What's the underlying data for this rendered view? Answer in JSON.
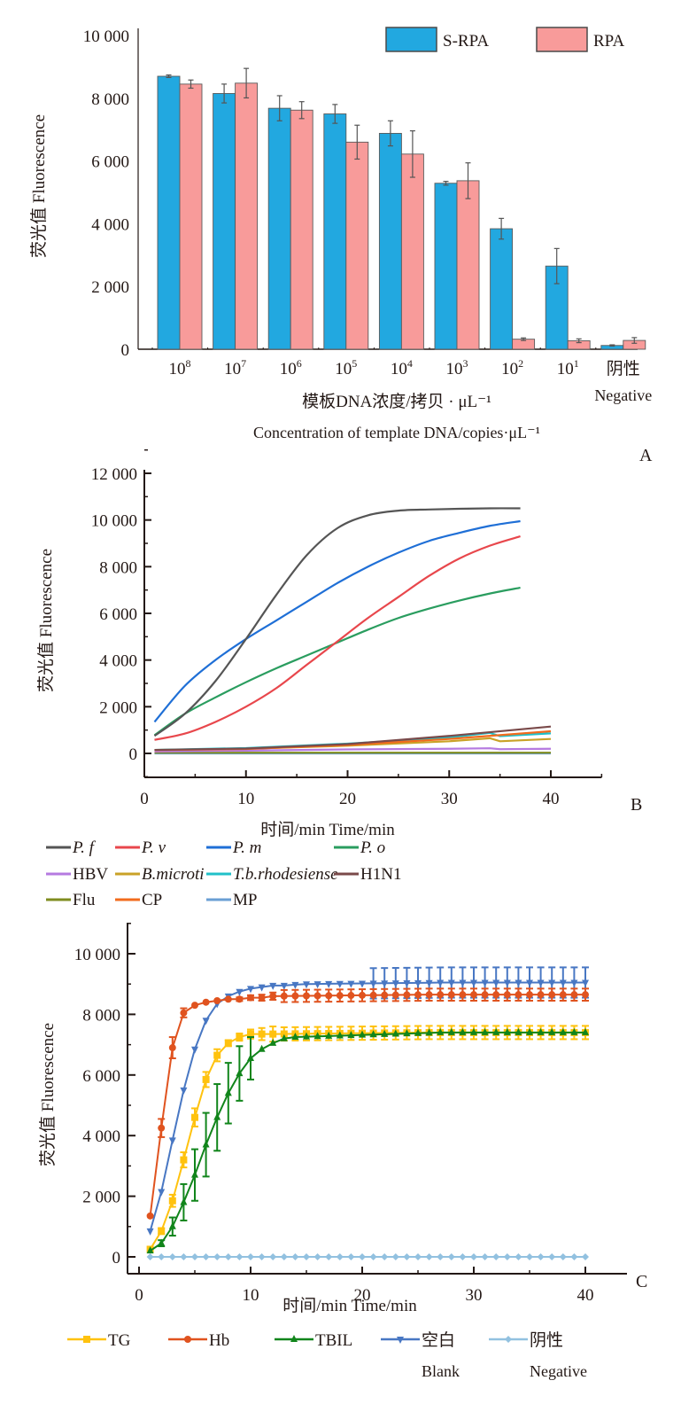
{
  "chart_data": [
    {
      "id": "A",
      "type": "bar",
      "panel_label": "A",
      "ylabel": "荧光值 Fluorescence",
      "xlabel_cn": "模板DNA浓度/拷贝 · μL⁻¹",
      "xlabel_en": "Concentration of template DNA/copies·μL⁻¹",
      "ylim": [
        0,
        10000
      ],
      "yticks": [
        0,
        2000,
        4000,
        6000,
        8000,
        10000
      ],
      "ytick_labels": [
        "0",
        "2 000",
        "4 000",
        "6 000",
        "8 000",
        "10 000"
      ],
      "categories": [
        {
          "base": "10",
          "exp": "8"
        },
        {
          "base": "10",
          "exp": "7"
        },
        {
          "base": "10",
          "exp": "6"
        },
        {
          "base": "10",
          "exp": "5"
        },
        {
          "base": "10",
          "exp": "4"
        },
        {
          "base": "10",
          "exp": "3"
        },
        {
          "base": "10",
          "exp": "2"
        },
        {
          "base": "10",
          "exp": "1"
        },
        {
          "base": "阴性",
          "exp": "",
          "sub": "Negative"
        }
      ],
      "legend_position": "top-right",
      "series": [
        {
          "name": "S-RPA",
          "color": "#22a8e0",
          "values": [
            8700,
            8150,
            7680,
            7500,
            6880,
            5290,
            3840,
            2650,
            120
          ],
          "errors": [
            40,
            300,
            400,
            300,
            400,
            60,
            330,
            560,
            20
          ]
        },
        {
          "name": "RPA",
          "color": "#f89b9a",
          "values": [
            8450,
            8480,
            7620,
            6600,
            6220,
            5370,
            320,
            270,
            280
          ],
          "errors": [
            130,
            470,
            270,
            540,
            740,
            570,
            40,
            60,
            90
          ]
        }
      ]
    },
    {
      "id": "B",
      "type": "line",
      "panel_label": "B",
      "ylabel": "荧光值 Fluorescence",
      "xlabel": "时间/min  Time/min",
      "xlim": [
        0,
        45
      ],
      "ylim": [
        -1000,
        12000
      ],
      "xticks": [
        0,
        10,
        20,
        30,
        40
      ],
      "xtick_labels": [
        "0",
        "10",
        "20",
        "30",
        "40"
      ],
      "yticks": [
        0,
        2000,
        4000,
        6000,
        8000,
        10000,
        12000
      ],
      "ytick_labels": [
        "0",
        "2 000",
        "4 000",
        "6 000",
        "8 000",
        "10 000",
        "12 000"
      ],
      "legend_position": "bottom",
      "series": [
        {
          "name": "P. f",
          "italic": true,
          "color": "#555555",
          "x": [
            1,
            4,
            7,
            10,
            13,
            16,
            19,
            22,
            25,
            28,
            31,
            34,
            37
          ],
          "y": [
            750,
            1700,
            3100,
            4900,
            6800,
            8500,
            9650,
            10200,
            10400,
            10450,
            10480,
            10500,
            10500
          ]
        },
        {
          "name": "P. v",
          "italic": true,
          "color": "#e8474c",
          "x": [
            1,
            4,
            7,
            10,
            13,
            16,
            19,
            22,
            25,
            28,
            31,
            34,
            37
          ],
          "y": [
            580,
            850,
            1350,
            2000,
            2800,
            3800,
            4800,
            5800,
            6700,
            7600,
            8350,
            8900,
            9300
          ]
        },
        {
          "name": "P. m",
          "italic": true,
          "color": "#1f6fd6",
          "x": [
            1,
            4,
            7,
            10,
            13,
            16,
            19,
            22,
            25,
            28,
            31,
            34,
            37
          ],
          "y": [
            1350,
            2900,
            4000,
            4900,
            5700,
            6500,
            7300,
            8000,
            8600,
            9100,
            9450,
            9750,
            9950
          ]
        },
        {
          "name": "P. o",
          "italic": true,
          "color": "#2a9d5f",
          "x": [
            1,
            4,
            7,
            10,
            13,
            16,
            19,
            22,
            25,
            28,
            31,
            34,
            37
          ],
          "y": [
            780,
            1700,
            2400,
            3050,
            3650,
            4200,
            4750,
            5300,
            5800,
            6200,
            6550,
            6850,
            7100
          ]
        },
        {
          "name": "HBV",
          "italic": false,
          "color": "#b57ae0",
          "x": [
            1,
            10,
            20,
            30,
            34,
            35,
            40
          ],
          "y": [
            80,
            120,
            170,
            200,
            220,
            180,
            200
          ]
        },
        {
          "name": "B.microti",
          "italic": true,
          "color": "#c9a227",
          "x": [
            1,
            10,
            20,
            30,
            34,
            35,
            40
          ],
          "y": [
            150,
            200,
            330,
            520,
            650,
            520,
            620
          ]
        },
        {
          "name": "T.b.rhodesiense",
          "italic": true,
          "color": "#20c0c8",
          "x": [
            1,
            10,
            20,
            30,
            34,
            35,
            40
          ],
          "y": [
            150,
            230,
            420,
            680,
            880,
            740,
            860
          ]
        },
        {
          "name": "H1N1",
          "italic": false,
          "color": "#7a4a4a",
          "x": [
            1,
            10,
            20,
            30,
            40
          ],
          "y": [
            150,
            210,
            400,
            750,
            1150
          ]
        },
        {
          "name": "Flu",
          "italic": false,
          "color": "#7f8c1f",
          "x": [
            1,
            10,
            20,
            30,
            40
          ],
          "y": [
            30,
            30,
            30,
            30,
            30
          ]
        },
        {
          "name": "CP",
          "italic": false,
          "color": "#f26b1d",
          "x": [
            1,
            10,
            20,
            30,
            40
          ],
          "y": [
            140,
            190,
            360,
            620,
            950
          ]
        },
        {
          "name": "MP",
          "italic": false,
          "color": "#6a9fd4",
          "x": [
            1,
            10,
            20,
            30,
            40
          ],
          "y": [
            0,
            0,
            0,
            0,
            0
          ]
        }
      ]
    },
    {
      "id": "C",
      "type": "line",
      "panel_label": "C",
      "ylabel": "荧光值 Fluorescence",
      "xlabel": "时间/min  Time/min",
      "xlim": [
        -1,
        42
      ],
      "ylim": [
        -500,
        11000
      ],
      "xticks": [
        0,
        10,
        20,
        30,
        40
      ],
      "xtick_labels": [
        "0",
        "10",
        "20",
        "30",
        "40"
      ],
      "yticks": [
        0,
        2000,
        4000,
        6000,
        8000,
        10000
      ],
      "ytick_labels": [
        "0",
        "2 000",
        "4 000",
        "6 000",
        "8 000",
        "10 000"
      ],
      "legend_position": "bottom",
      "series": [
        {
          "name": "TG",
          "sub": "",
          "color": "#ffc20e",
          "marker": "square",
          "x": [
            1,
            2,
            3,
            4,
            5,
            6,
            7,
            8,
            9,
            10,
            11,
            12
          ],
          "y": [
            250,
            850,
            1850,
            3200,
            4600,
            5850,
            6650,
            7050,
            7250,
            7350,
            7350,
            7350
          ],
          "tail": 7400,
          "err_early": [
            0,
            100,
            200,
            250,
            300,
            250,
            200,
            100,
            120,
            150,
            200,
            250
          ],
          "err_tail": 220
        },
        {
          "name": "Hb",
          "sub": "",
          "color": "#e0531f",
          "marker": "circle",
          "x": [
            1,
            2,
            3,
            4,
            5,
            6,
            7,
            8,
            9,
            10,
            11,
            12
          ],
          "y": [
            1350,
            4250,
            6900,
            8050,
            8300,
            8400,
            8450,
            8500,
            8500,
            8550,
            8550,
            8600
          ],
          "tail": 8650,
          "err_early": [
            0,
            300,
            350,
            150,
            0,
            0,
            0,
            0,
            60,
            80,
            100,
            120
          ],
          "err_tail": 200
        },
        {
          "name": "TBIL",
          "sub": "",
          "color": "#11851b",
          "marker": "triangle-up",
          "x": [
            1,
            2,
            3,
            4,
            5,
            6,
            7,
            8,
            9,
            10,
            11,
            12,
            13,
            14
          ],
          "y": [
            200,
            450,
            1000,
            1800,
            2700,
            3700,
            4600,
            5400,
            6050,
            6550,
            6850,
            7050,
            7200,
            7250
          ],
          "tail": 7400,
          "err_early": [
            0,
            100,
            300,
            600,
            850,
            1050,
            1100,
            1000,
            900,
            700,
            0,
            0,
            0,
            0
          ],
          "err_tail": 0
        },
        {
          "name": "空白",
          "sub": "Blank",
          "color": "#4877c3",
          "marker": "triangle-down",
          "x": [
            1,
            2,
            3,
            4,
            5,
            6,
            7,
            8,
            9,
            10,
            11,
            12,
            13,
            14,
            15
          ],
          "y": [
            850,
            2150,
            3850,
            5500,
            6850,
            7800,
            8350,
            8600,
            8750,
            8850,
            8900,
            8950,
            8950,
            8980,
            9000
          ],
          "tail": 9050,
          "err_early": [
            0,
            0,
            0,
            0,
            0,
            0,
            0,
            0,
            0,
            0,
            0,
            0,
            0,
            0,
            0
          ],
          "err_tail": 500
        },
        {
          "name": "阴性",
          "sub": "Negative",
          "color": "#92c1e0",
          "marker": "diamond",
          "x": [
            1,
            40
          ],
          "y": [
            0,
            0
          ],
          "tail": 0,
          "err_early": [
            0,
            0
          ],
          "err_tail": 0
        }
      ]
    }
  ]
}
